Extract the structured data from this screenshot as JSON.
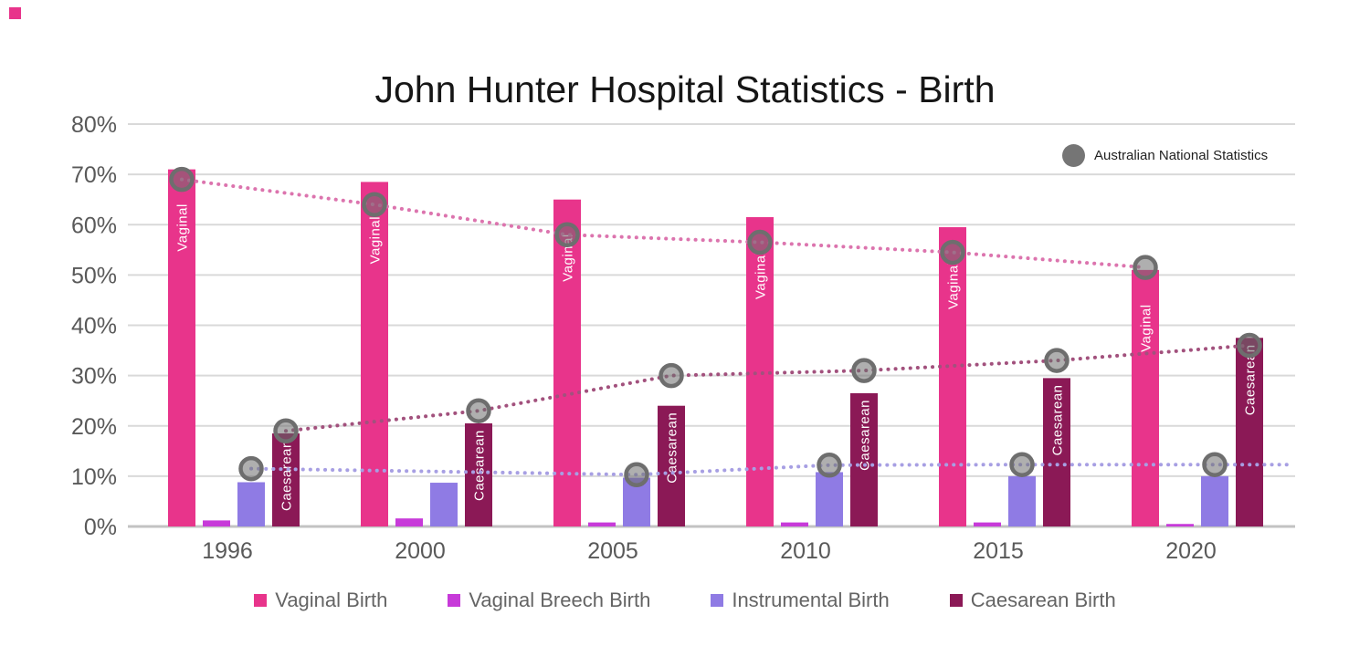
{
  "page": {
    "corner_accent_color": "#E8348B"
  },
  "title": "John Hunter Hospital Statistics - Birth",
  "top_legend": {
    "label": "Australian National Statistics",
    "marker_color": "#757575"
  },
  "legend": {
    "items": [
      {
        "label": "Vaginal Birth",
        "color": "#E8348B"
      },
      {
        "label": "Vaginal Breech Birth",
        "color": "#C73AD9"
      },
      {
        "label": "Instrumental Birth",
        "color": "#8F7BE4"
      },
      {
        "label": "Caesarean Birth",
        "color": "#8B1956"
      }
    ]
  },
  "chart_data": {
    "type": "bar",
    "title": "John Hunter Hospital Statistics - Birth",
    "xlabel": "",
    "ylabel": "",
    "ylim": [
      0,
      80
    ],
    "grid": true,
    "y_ticks": [
      "0%",
      "10%",
      "20%",
      "30%",
      "40%",
      "50%",
      "60%",
      "70%",
      "80%"
    ],
    "categories": [
      "1996",
      "2000",
      "2005",
      "2010",
      "2015",
      "2020"
    ],
    "series": [
      {
        "name": "Vaginal Birth",
        "color": "#E8348B",
        "bar_label": "Vaginal",
        "values": [
          71,
          68.5,
          65,
          61.5,
          59.5,
          51
        ]
      },
      {
        "name": "Vaginal Breech Birth",
        "color": "#C73AD9",
        "bar_label": "",
        "values": [
          1.2,
          1.6,
          0.8,
          0.8,
          0.8,
          0.5
        ]
      },
      {
        "name": "Instrumental Birth",
        "color": "#8F7BE4",
        "bar_label": "",
        "values": [
          8.8,
          8.7,
          9.7,
          10.8,
          10,
          10
        ]
      },
      {
        "name": "Caesarean Birth",
        "color": "#8B1956",
        "bar_label": "Caesarean",
        "values": [
          18.5,
          20.5,
          24,
          26.5,
          29.5,
          37.5
        ]
      }
    ],
    "national_series": [
      {
        "name": "Vaginal Birth - Australian National Statistics",
        "line_color": "#DC74AE",
        "over_series": 0,
        "extend_right": false,
        "values": [
          69,
          64,
          58,
          56.5,
          54.5,
          51.5
        ]
      },
      {
        "name": "Caesarean Birth - Australian National Statistics",
        "line_color": "#A2517D",
        "over_series": 3,
        "extend_right": false,
        "values": [
          19,
          23,
          30,
          31,
          33,
          36
        ]
      },
      {
        "name": "Instrumental Birth - Australian National Statistics",
        "line_color": "#A79FE3",
        "over_series": 2,
        "extend_right": true,
        "values": [
          11.5,
          null,
          10.3,
          12.2,
          12.3,
          12.3
        ]
      }
    ],
    "marker": {
      "color": "#6E6E6E",
      "fill_opacity": 0.55
    },
    "axis_colors": {
      "tick_label": "#595959",
      "gridline": "#D9D9D9",
      "baseline": "#C3C3C3"
    }
  }
}
